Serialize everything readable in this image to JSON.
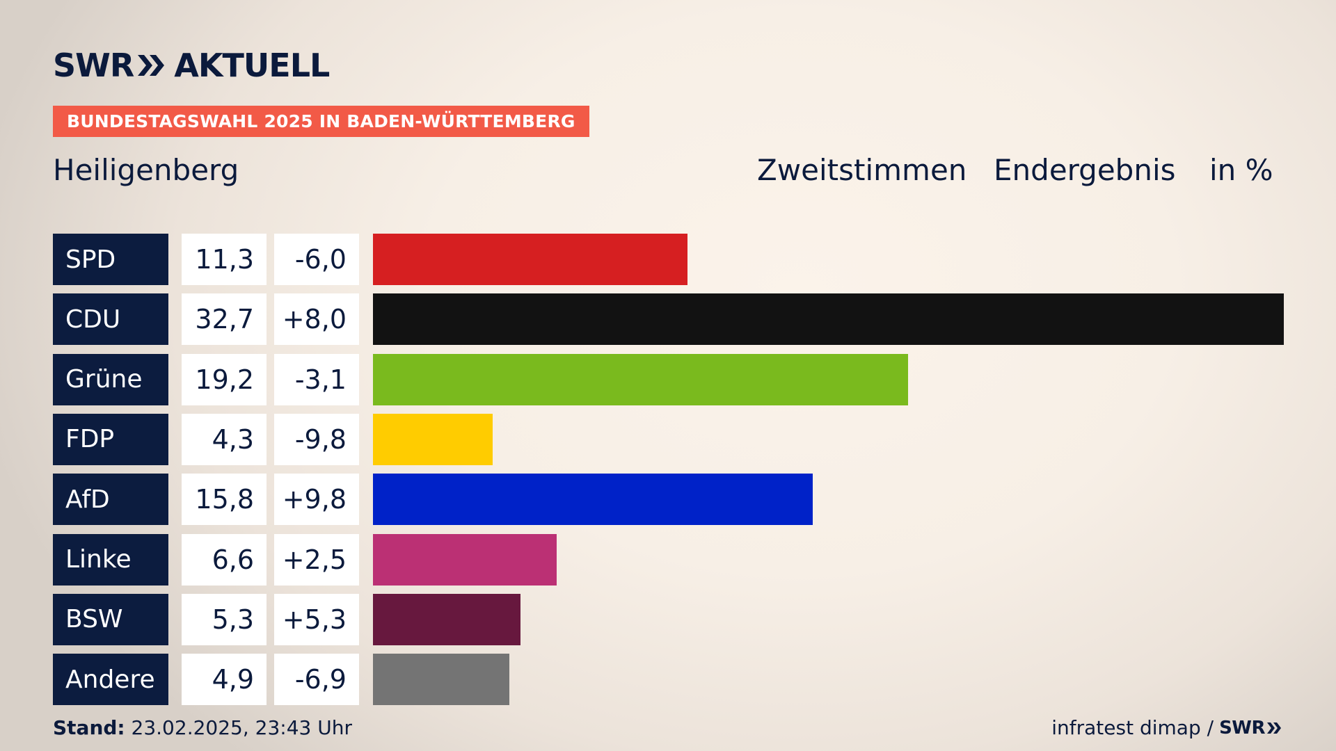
{
  "header": {
    "logo_swr": "SWR",
    "logo_aktuell": "AKTUELL",
    "banner": "BUNDESTAGSWAHL 2025 IN BADEN-WÜRTTEMBERG",
    "place": "Heiligenberg",
    "col1": "Zweitstimmen",
    "col2": "Endergebnis",
    "col3": "in %"
  },
  "footer": {
    "stand_label": "Stand:",
    "stand_value": "23.02.2025, 23:43 Uhr",
    "source": "infratest dimap /",
    "source_logo": "SWR"
  },
  "colors": {
    "banner": "#f25a47",
    "party_box": "#0c1c3f",
    "text": "#0b1a3c"
  },
  "chart_data": {
    "type": "bar",
    "orientation": "horizontal",
    "categories": [
      "SPD",
      "CDU",
      "Grüne",
      "FDP",
      "AfD",
      "Linke",
      "BSW",
      "Andere"
    ],
    "values": [
      11.3,
      32.7,
      19.2,
      4.3,
      15.8,
      6.6,
      5.3,
      4.9
    ],
    "value_labels": [
      "11,3",
      "32,7",
      "19,2",
      "4,3",
      "15,8",
      "6,6",
      "5,3",
      "4,9"
    ],
    "diff_labels": [
      "-6,0",
      "+8,0",
      "-3,1",
      "-9,8",
      "+9,8",
      "+2,5",
      "+5,3",
      "-6,9"
    ],
    "colors": [
      "#d61f21",
      "#121212",
      "#7aba1e",
      "#ffcc00",
      "#0022c8",
      "#bb3074",
      "#67183e",
      "#747474"
    ],
    "xlim": [
      0,
      32.7
    ]
  }
}
